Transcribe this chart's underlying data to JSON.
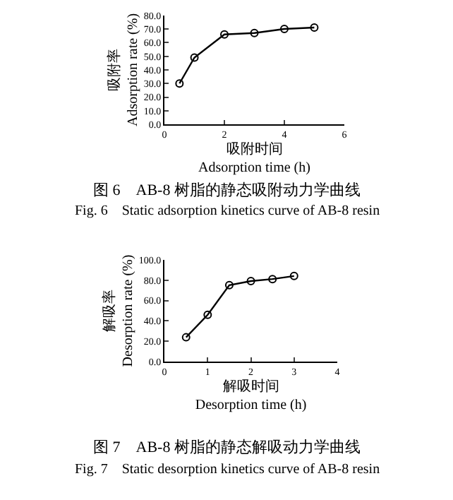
{
  "chart_data": [
    {
      "type": "line",
      "xlabel": "吸附时间\nAdsorption time (h)",
      "ylabel": "吸附率\nAdsorption rate (%)",
      "x": [
        0.5,
        1,
        2,
        3,
        4,
        5
      ],
      "series": [
        {
          "color": "#000000",
          "values": [
            30,
            49,
            66,
            67,
            70,
            71
          ]
        }
      ],
      "xlim": [
        0,
        6
      ],
      "xticks": [
        0,
        2,
        4,
        6
      ],
      "ylim": [
        0,
        80
      ],
      "yticks": [
        {
          "value": 0,
          "label": "0.0"
        },
        {
          "value": 10,
          "label": "10.0"
        },
        {
          "value": 20,
          "label": "20.0"
        },
        {
          "value": 30,
          "label": "30.0"
        },
        {
          "value": 40,
          "label": "40.0"
        },
        {
          "value": 50,
          "label": "50.0"
        },
        {
          "value": 60,
          "label": "60.0"
        },
        {
          "value": 70,
          "label": "70.0"
        },
        {
          "value": 80,
          "label": "80.0"
        }
      ],
      "marker": "circle",
      "line_style": "solid",
      "annotations": [
        "图 6　AB-8 树脂的静态吸附动力学曲线",
        "Fig. 6　Static adsorption kinetics curve of AB-8 resin"
      ]
    },
    {
      "type": "line",
      "xlabel": "解吸时间\nDesorption time (h)",
      "ylabel": "解吸率\nDesorption rate (%)",
      "x": [
        0.5,
        1,
        1.5,
        2,
        2.5,
        3
      ],
      "series": [
        {
          "color": "#000000",
          "values": [
            24,
            46,
            75,
            79,
            81,
            84
          ]
        }
      ],
      "xlim": [
        0,
        4
      ],
      "xticks": [
        0,
        1,
        2,
        3,
        4
      ],
      "ylim": [
        0,
        100
      ],
      "yticks": [
        {
          "value": 0,
          "label": "0.0"
        },
        {
          "value": 20,
          "label": "20.0"
        },
        {
          "value": 40,
          "label": "40.0"
        },
        {
          "value": 60,
          "label": "60.0"
        },
        {
          "value": 80,
          "label": "80.0"
        },
        {
          "value": 100,
          "label": "100.0"
        }
      ],
      "marker": "circle",
      "line_style": "solid",
      "annotations": [
        "图 7　AB-8 树脂的静态解吸动力学曲线",
        "Fig. 7　Static desorption kinetics curve of AB-8 resin"
      ]
    }
  ]
}
